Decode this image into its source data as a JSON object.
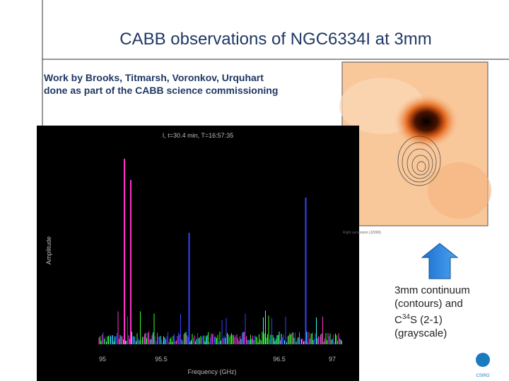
{
  "slide": {
    "title": "CABB observations of NGC6334I at 3mm",
    "credit": [
      "Work by Brooks, Titmarsh, Voronkov, Urquhart",
      "done as part of the CABB science commissioning"
    ],
    "spectrum": {
      "heading": "I, t=30.4 min, T=16:57:35",
      "x_label": "Frequency (GHz)",
      "y_label": "Amplitude",
      "x_ticks": [
        "95",
        "95.5",
        "96.5",
        "97"
      ]
    },
    "caption": {
      "line1": "3mm continuum",
      "line2": "(contours) and",
      "line3_pre": "C",
      "line3_sup": "34",
      "line3_post": "S (2-1)",
      "line4": "(grayscale)"
    },
    "logo": "CSIRO"
  }
}
